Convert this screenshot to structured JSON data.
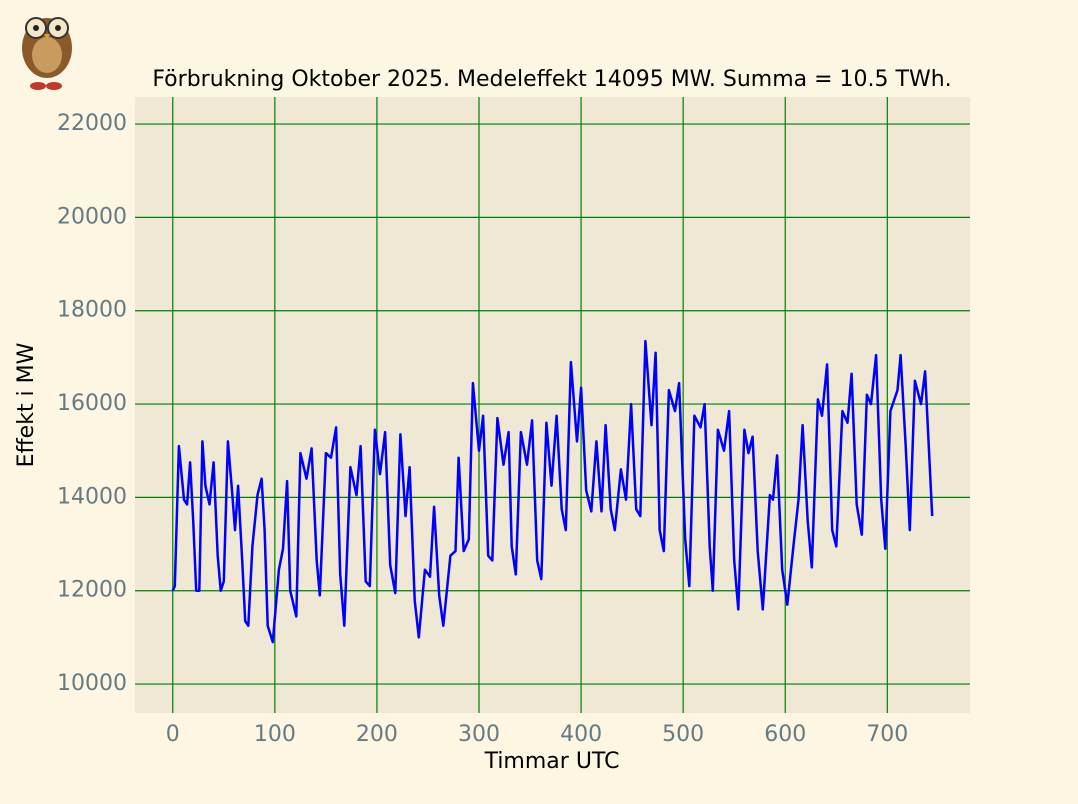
{
  "chart_data": {
    "type": "line",
    "title": "Förbrukning Oktober 2025. Medeleffekt 14095 MW. Summa = 10.5 TWh.",
    "x_label": "Timmar UTC",
    "y_label": "Effekt i MW",
    "xlim": [
      -37,
      781
    ],
    "ylim": [
      9380,
      22580
    ],
    "xticks": [
      0,
      100,
      200,
      300,
      400,
      500,
      600,
      700
    ],
    "yticks": [
      10000,
      12000,
      14000,
      16000,
      18000,
      20000,
      22000
    ],
    "grid": true,
    "grid_color": "#008000",
    "series": [
      {
        "color": "#0000ff",
        "x": [
          0,
          2,
          6,
          11,
          14,
          17,
          20,
          23,
          26,
          29,
          32,
          36,
          40,
          44,
          47,
          50,
          54,
          58,
          61,
          64,
          68,
          71,
          74,
          78,
          83,
          87,
          90,
          93,
          98,
          104,
          108,
          112,
          115,
          121,
          125,
          131,
          136,
          141,
          144,
          150,
          155,
          160,
          164,
          168,
          174,
          180,
          184,
          189,
          193,
          198,
          203,
          208,
          213,
          218,
          223,
          228,
          232,
          237,
          241,
          247,
          252,
          256,
          261,
          265,
          272,
          277,
          280,
          285,
          290,
          294,
          300,
          304,
          309,
          313,
          318,
          324,
          329,
          332,
          336,
          341,
          347,
          352,
          357,
          361,
          366,
          371,
          376,
          381,
          385,
          390,
          396,
          400,
          405,
          410,
          415,
          420,
          424,
          429,
          433,
          439,
          444,
          449,
          454,
          458,
          463,
          469,
          473,
          477,
          481,
          486,
          492,
          496,
          502,
          506,
          511,
          517,
          521,
          526,
          529,
          534,
          540,
          545,
          550,
          554,
          560,
          564,
          568,
          573,
          578,
          585,
          588,
          592,
          597,
          602,
          608,
          613,
          617,
          622,
          626,
          632,
          636,
          641,
          646,
          650,
          656,
          661,
          665,
          670,
          675,
          680,
          684,
          689,
          694,
          698,
          703,
          710,
          713,
          718,
          722,
          727,
          733,
          737,
          744
        ],
        "values": [
          12000,
          12100,
          15100,
          13950,
          13850,
          14750,
          13500,
          12000,
          12000,
          15200,
          14250,
          13850,
          14750,
          12750,
          12000,
          12200,
          15200,
          14150,
          13300,
          14250,
          12650,
          11350,
          11250,
          12950,
          14050,
          14400,
          13300,
          11250,
          10900,
          12450,
          12900,
          14350,
          12000,
          11450,
          14950,
          14400,
          15050,
          12650,
          11900,
          14950,
          14850,
          15500,
          12350,
          11250,
          14650,
          14050,
          15100,
          12200,
          12100,
          15450,
          14500,
          15400,
          12550,
          11950,
          15350,
          13600,
          14650,
          11800,
          11000,
          12450,
          12300,
          13800,
          11900,
          11250,
          12750,
          12850,
          14850,
          12850,
          13100,
          16450,
          15000,
          15750,
          12750,
          12650,
          15700,
          14700,
          15400,
          12950,
          12350,
          15400,
          14700,
          15650,
          12650,
          12250,
          15600,
          14250,
          15750,
          13750,
          13300,
          16900,
          15200,
          16350,
          14150,
          13700,
          15200,
          13700,
          15550,
          13750,
          13300,
          14600,
          13950,
          16000,
          13750,
          13600,
          17350,
          15550,
          17100,
          13300,
          12850,
          16300,
          15850,
          16450,
          13100,
          12100,
          15750,
          15500,
          16000,
          12950,
          12000,
          15450,
          15000,
          15850,
          12650,
          11600,
          15450,
          14950,
          15300,
          12850,
          11600,
          14050,
          13950,
          14900,
          12450,
          11700,
          12950,
          13950,
          15550,
          13500,
          12500,
          16100,
          15750,
          16850,
          13300,
          12950,
          15850,
          15600,
          16650,
          13850,
          13200,
          16200,
          16000,
          17050,
          13950,
          12900,
          15850,
          16300,
          17050,
          15100,
          13300,
          16500,
          16000,
          16700,
          13600
        ]
      }
    ]
  }
}
